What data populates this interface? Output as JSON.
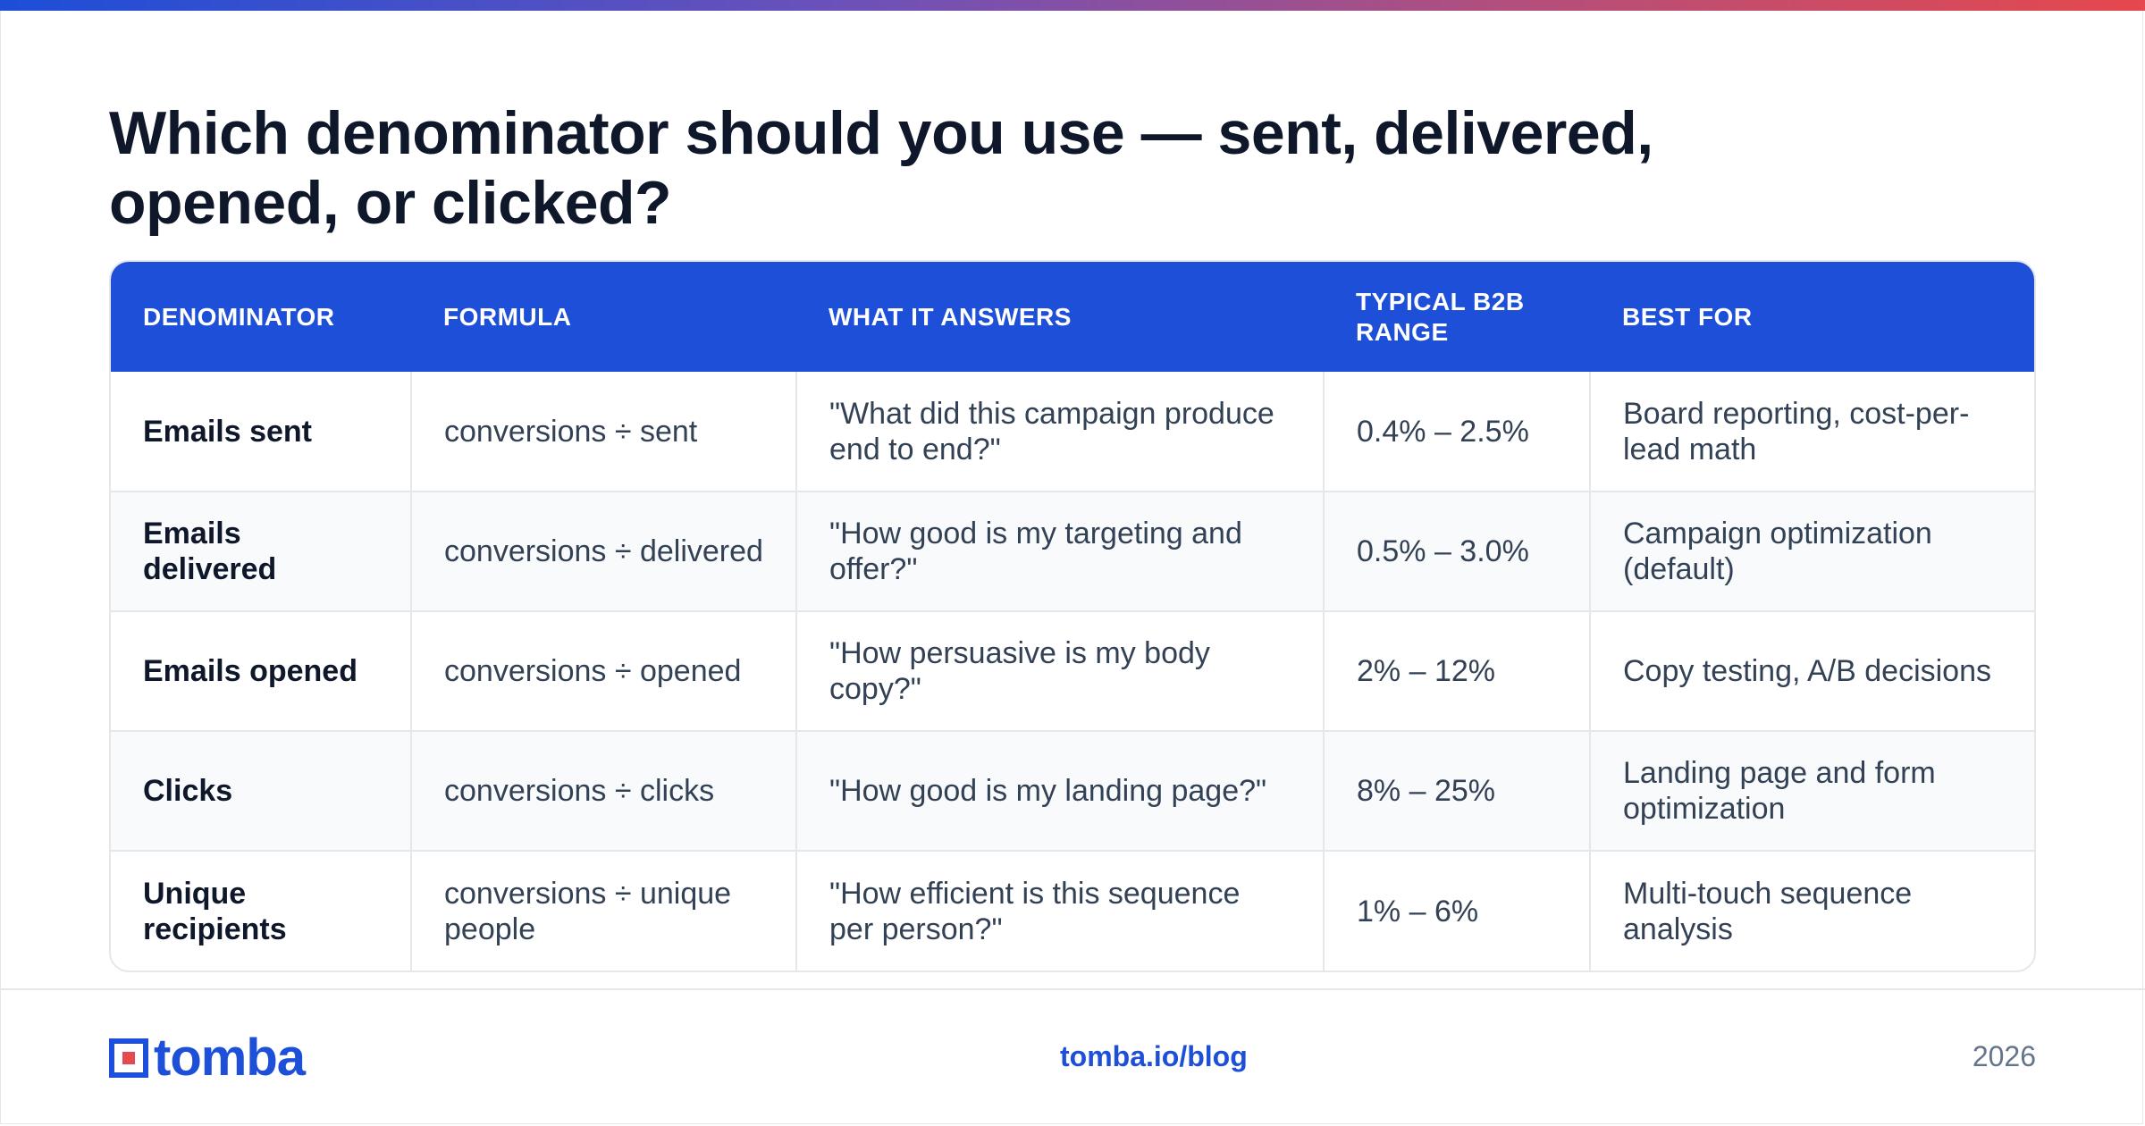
{
  "title": "Which denominator should you use — sent, delivered, opened, or clicked?",
  "table": {
    "headers": [
      "DENOMINATOR",
      "FORMULA",
      "WHAT IT ANSWERS",
      "TYPICAL B2B RANGE",
      "BEST FOR"
    ],
    "rows": [
      [
        "Emails sent",
        "conversions ÷ sent",
        "\"What did this campaign produce end to end?\"",
        "0.4% – 2.5%",
        "Board reporting, cost-per-lead math"
      ],
      [
        "Emails delivered",
        "conversions ÷ delivered",
        "\"How good is my targeting and offer?\"",
        "0.5% – 3.0%",
        "Campaign optimization (default)"
      ],
      [
        "Emails opened",
        "conversions ÷ opened",
        "\"How persuasive is my body copy?\"",
        "2% – 12%",
        "Copy testing, A/B decisions"
      ],
      [
        "Clicks",
        "conversions ÷ clicks",
        "\"How good is my landing page?\"",
        "8% – 25%",
        "Landing page and form optimization"
      ],
      [
        "Unique recipients",
        "conversions ÷ unique people",
        "\"How efficient is this sequence per person?\"",
        "1% – 6%",
        "Multi-touch sequence analysis"
      ]
    ]
  },
  "footer": {
    "brand": "tomba",
    "link": "tomba.io/blog",
    "year": "2026"
  },
  "colors": {
    "accent": "#1d4fd8",
    "brand_red": "#e5484d",
    "text_dark": "#0f172a",
    "text_body": "#334155"
  },
  "icons": {
    "logo": "tomba-logo-mark"
  }
}
